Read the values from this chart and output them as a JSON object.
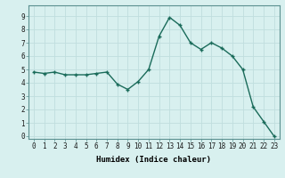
{
  "x": [
    0,
    1,
    2,
    3,
    4,
    5,
    6,
    7,
    8,
    9,
    10,
    11,
    12,
    13,
    14,
    15,
    16,
    17,
    18,
    19,
    20,
    21,
    22,
    23
  ],
  "y": [
    4.8,
    4.7,
    4.8,
    4.6,
    4.6,
    4.6,
    4.7,
    4.8,
    3.9,
    3.5,
    4.1,
    5.0,
    7.5,
    8.9,
    8.3,
    7.0,
    6.5,
    7.0,
    6.6,
    6.0,
    5.0,
    2.2,
    1.1,
    0.0
  ],
  "line_color": "#1a6b5a",
  "marker": "+",
  "marker_size": 3,
  "marker_lw": 1.0,
  "line_width": 1.0,
  "bg_color": "#d8f0ef",
  "grid_color": "#c0dede",
  "xlabel": "Humidex (Indice chaleur)",
  "ylim": [
    -0.2,
    9.8
  ],
  "xlim": [
    -0.5,
    23.5
  ],
  "xticks": [
    0,
    1,
    2,
    3,
    4,
    5,
    6,
    7,
    8,
    9,
    10,
    11,
    12,
    13,
    14,
    15,
    16,
    17,
    18,
    19,
    20,
    21,
    22,
    23
  ],
  "yticks": [
    0,
    1,
    2,
    3,
    4,
    5,
    6,
    7,
    8,
    9
  ],
  "tick_fontsize": 5.5,
  "label_fontsize": 6.5,
  "spine_color": "#5a9090"
}
